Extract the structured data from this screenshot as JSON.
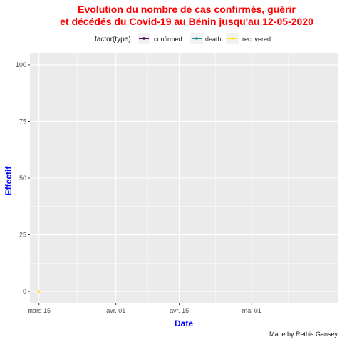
{
  "chart_data": {
    "type": "line",
    "title_lines": [
      "Evolution du nombre de cas confirmés, guérir",
      "et décédés  du Covid-19 au Bénin jusqu'au 12-05-2020"
    ],
    "xlabel": "Date",
    "ylabel": "Effectif",
    "caption": "Made by Rethis Gansey",
    "legend": {
      "title": "factor(type)",
      "position": "top",
      "entries": [
        "confirmed",
        "death",
        "recovered"
      ]
    },
    "x_domain": [
      "2020-03-13",
      "2020-05-20"
    ],
    "x_ticks": [
      {
        "date": "2020-03-15",
        "label": "mars 15"
      },
      {
        "date": "2020-04-01",
        "label": "avr. 01"
      },
      {
        "date": "2020-04-15",
        "label": "avr. 15"
      },
      {
        "date": "2020-05-01",
        "label": "mai 01"
      }
    ],
    "ylim": [
      -5,
      105
    ],
    "y_ticks": [
      0,
      25,
      50,
      75,
      100
    ],
    "grid": true,
    "series": [
      {
        "name": "confirmed",
        "color": "#440154",
        "points": []
      },
      {
        "name": "death",
        "color": "#21908C",
        "points": []
      },
      {
        "name": "recovered",
        "color": "#FDE725",
        "points": [
          {
            "x": "2020-03-15",
            "y": 0
          }
        ]
      }
    ]
  },
  "colors": {
    "title": "#ff0000",
    "axis_title": "#0000ff",
    "panel_bg": "#ebebeb",
    "grid": "#ffffff"
  }
}
